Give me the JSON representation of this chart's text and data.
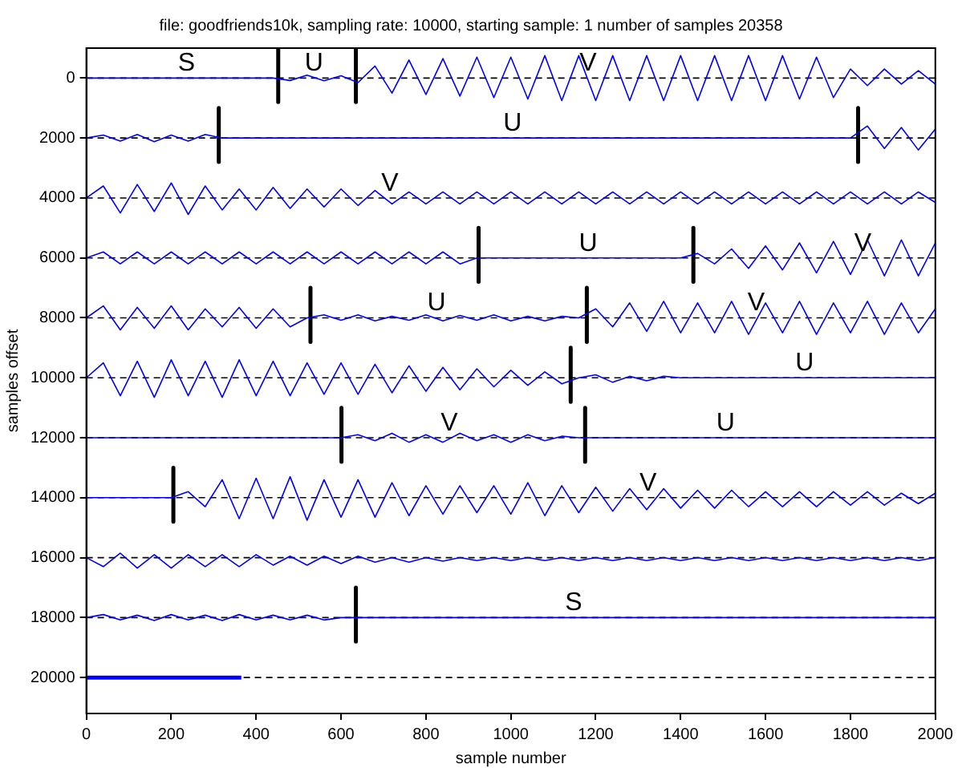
{
  "chart_data": {
    "type": "line",
    "title": "file: goodfriends10k, sampling rate: 10000, starting sample: 1 number of samples 20358",
    "xlabel": "sample number",
    "ylabel": "samples offset",
    "xlim": [
      0,
      2000
    ],
    "xticks": [
      0,
      200,
      400,
      600,
      800,
      1000,
      1200,
      1400,
      1600,
      1800,
      2000
    ],
    "ylim": [
      21200,
      -1000
    ],
    "yticks": [
      0,
      2000,
      4000,
      6000,
      8000,
      10000,
      12000,
      14000,
      16000,
      18000,
      20000
    ],
    "grid": false,
    "legend": false,
    "marker": "none",
    "line_style": "solid",
    "x": [
      0,
      40,
      80,
      120,
      160,
      200,
      240,
      280,
      320,
      360,
      400,
      440,
      480,
      520,
      560,
      600,
      640,
      680,
      720,
      760,
      800,
      840,
      880,
      920,
      960,
      1000,
      1040,
      1080,
      1120,
      1160,
      1200,
      1240,
      1280,
      1320,
      1360,
      1400,
      1440,
      1480,
      1520,
      1560,
      1600,
      1640,
      1680,
      1720,
      1760,
      1800,
      1840,
      1880,
      1920,
      1960,
      2000
    ],
    "series": [
      {
        "color": "#0000ff",
        "values": [
          0,
          0,
          0,
          0,
          0,
          0,
          0,
          0,
          0,
          0,
          0,
          0,
          80,
          -100,
          90,
          -80,
          150,
          -400,
          500,
          -600,
          550,
          -650,
          600,
          -700,
          650,
          -700,
          700,
          -750,
          750,
          -750,
          750,
          -750,
          750,
          -750,
          750,
          -750,
          750,
          -750,
          750,
          -750,
          750,
          -750,
          700,
          -700,
          650,
          -300,
          250,
          -300,
          200,
          -250,
          200
        ]
      },
      {
        "color": "#0000ff",
        "values": [
          2000,
          1900,
          2100,
          1880,
          2120,
          1900,
          2100,
          1880,
          2000,
          2000,
          2000,
          2000,
          2000,
          2000,
          2000,
          2000,
          2000,
          2000,
          2000,
          2000,
          2000,
          2000,
          2000,
          2000,
          2000,
          2000,
          2000,
          2000,
          2000,
          2000,
          2000,
          2000,
          2000,
          2000,
          2000,
          2000,
          2000,
          2000,
          2000,
          2000,
          2000,
          2000,
          2000,
          2000,
          2000,
          2000,
          1600,
          2350,
          1650,
          2400,
          1700
        ]
      },
      {
        "color": "#0000ff",
        "values": [
          4000,
          3600,
          4500,
          3550,
          4450,
          3500,
          4550,
          3600,
          4400,
          3700,
          4400,
          3650,
          4350,
          3700,
          4300,
          3700,
          4250,
          3750,
          4200,
          3800,
          4200,
          3800,
          4200,
          3800,
          4200,
          3800,
          4200,
          3800,
          4200,
          3800,
          4200,
          3800,
          4200,
          3800,
          4200,
          3800,
          4200,
          3800,
          4200,
          3800,
          4200,
          3800,
          4200,
          3800,
          4200,
          3800,
          4200,
          3800,
          4200,
          3800,
          4150
        ]
      },
      {
        "color": "#0000ff",
        "values": [
          6000,
          5800,
          6200,
          5800,
          6200,
          5800,
          6200,
          5800,
          6200,
          5800,
          6200,
          5800,
          6200,
          5800,
          6200,
          5800,
          6200,
          5800,
          6200,
          5800,
          6200,
          5800,
          6200,
          6000,
          6000,
          6000,
          6000,
          6000,
          6000,
          6000,
          6000,
          6000,
          6000,
          6000,
          6000,
          6000,
          5850,
          6200,
          5700,
          6350,
          5600,
          6400,
          5500,
          6500,
          5450,
          6550,
          5400,
          6600,
          5400,
          6600,
          5500
        ]
      },
      {
        "color": "#0000ff",
        "values": [
          8000,
          7600,
          8400,
          7650,
          8350,
          7600,
          8400,
          7700,
          8300,
          7650,
          8350,
          7700,
          8300,
          8000,
          7900,
          8080,
          7900,
          8100,
          7950,
          8080,
          7900,
          8100,
          7920,
          8080,
          7900,
          8100,
          7950,
          8100,
          7950,
          8000,
          7700,
          8300,
          7500,
          8450,
          7450,
          8500,
          7500,
          8500,
          7450,
          8550,
          7500,
          8500,
          7450,
          8550,
          7500,
          8500,
          7450,
          8550,
          7500,
          8500,
          7700
        ]
      },
      {
        "color": "#0000ff",
        "values": [
          10000,
          9500,
          10600,
          9450,
          10650,
          9400,
          10600,
          9450,
          10650,
          9400,
          10600,
          9450,
          10600,
          9500,
          10550,
          9500,
          10550,
          9550,
          10500,
          9600,
          10450,
          9650,
          10400,
          9700,
          10300,
          9750,
          10250,
          9800,
          10200,
          10000,
          9900,
          10150,
          9950,
          10100,
          9950,
          10000,
          10000,
          10000,
          10000,
          10000,
          10000,
          10000,
          10000,
          10000,
          10000,
          10000,
          10000,
          10000,
          10000,
          10000,
          10000
        ]
      },
      {
        "color": "#0000ff",
        "values": [
          12000,
          12000,
          12000,
          12000,
          12000,
          12000,
          12000,
          12000,
          12000,
          12000,
          12000,
          12000,
          12000,
          12000,
          12000,
          12000,
          11900,
          12100,
          11850,
          12150,
          11900,
          12150,
          11850,
          12100,
          11900,
          12150,
          11900,
          12100,
          11950,
          12000,
          12000,
          12000,
          12000,
          12000,
          12000,
          12000,
          12000,
          12000,
          12000,
          12000,
          12000,
          12000,
          12000,
          12000,
          12000,
          12000,
          12000,
          12000,
          12000,
          12000,
          12000
        ]
      },
      {
        "color": "#0000ff",
        "values": [
          14000,
          14000,
          14000,
          14000,
          14000,
          14000,
          13800,
          14300,
          13400,
          14700,
          13350,
          14700,
          13300,
          14750,
          13400,
          14650,
          13400,
          14650,
          13500,
          14600,
          13600,
          14550,
          13600,
          14500,
          13600,
          14550,
          13500,
          14600,
          13600,
          14500,
          13650,
          14450,
          13700,
          14400,
          13700,
          14350,
          13750,
          14350,
          13750,
          14300,
          13800,
          14300,
          13800,
          14300,
          13800,
          14250,
          13800,
          14250,
          13850,
          14200,
          13850
        ]
      },
      {
        "color": "#0000ff",
        "values": [
          16000,
          16300,
          15850,
          16350,
          15900,
          16350,
          15900,
          16300,
          15900,
          16300,
          15900,
          16250,
          15950,
          16250,
          15950,
          16200,
          15950,
          16150,
          16000,
          16150,
          16000,
          16120,
          16000,
          16100,
          16000,
          16100,
          16000,
          16100,
          16000,
          16100,
          16000,
          16100,
          16000,
          16100,
          16000,
          16100,
          16000,
          16100,
          16000,
          16100,
          16000,
          16100,
          16000,
          16100,
          16000,
          16100,
          16000,
          16100,
          16000,
          16100,
          16000
        ]
      },
      {
        "color": "#0000ff",
        "values": [
          18000,
          17900,
          18080,
          17920,
          18100,
          17900,
          18080,
          17920,
          18100,
          17900,
          18080,
          17920,
          18080,
          17920,
          18080,
          18000,
          18000,
          18000,
          18000,
          18000,
          18000,
          18000,
          18000,
          18000,
          18000,
          18000,
          18000,
          18000,
          18000,
          18000,
          18000,
          18000,
          18000,
          18000,
          18000,
          18000,
          18000,
          18000,
          18000,
          18000,
          18000,
          18000,
          18000,
          18000,
          18000,
          18000,
          18000,
          18000,
          18000,
          18000,
          18000
        ]
      },
      {
        "color": "#0000ff",
        "x": [
          0,
          365
        ],
        "values": [
          20000,
          20000
        ]
      },
      {
        "type": "line",
        "color": "#000000",
        "x": [
          452,
          452
        ],
        "values": [
          -1000,
          800
        ]
      },
      {
        "type": "line",
        "color": "#000000",
        "x": [
          635,
          635
        ],
        "values": [
          -1000,
          800
        ]
      },
      {
        "type": "line",
        "color": "#000000",
        "x": [
          312,
          312
        ],
        "values": [
          1000,
          2800
        ]
      },
      {
        "type": "line",
        "color": "#000000",
        "x": [
          1818,
          1818
        ],
        "values": [
          1000,
          2800
        ]
      },
      {
        "type": "line",
        "color": "#000000",
        "x": [
          924,
          924
        ],
        "values": [
          5000,
          6800
        ]
      },
      {
        "type": "line",
        "color": "#000000",
        "x": [
          1430,
          1430
        ],
        "values": [
          5000,
          6800
        ]
      },
      {
        "type": "line",
        "color": "#000000",
        "x": [
          528,
          528
        ],
        "values": [
          7000,
          8800
        ]
      },
      {
        "type": "line",
        "color": "#000000",
        "x": [
          1179,
          1179
        ],
        "values": [
          7000,
          8800
        ]
      },
      {
        "type": "line",
        "color": "#000000",
        "x": [
          1141,
          1141
        ],
        "values": [
          9000,
          10800
        ]
      },
      {
        "type": "line",
        "color": "#000000",
        "x": [
          601,
          601
        ],
        "values": [
          11000,
          12800
        ]
      },
      {
        "type": "line",
        "color": "#000000",
        "x": [
          1175,
          1175
        ],
        "values": [
          11000,
          12800
        ]
      },
      {
        "type": "line",
        "color": "#000000",
        "x": [
          205,
          205
        ],
        "values": [
          13000,
          14800
        ]
      },
      {
        "type": "line",
        "color": "#000000",
        "x": [
          635,
          635
        ],
        "values": [
          17000,
          18800
        ]
      }
    ],
    "ref_lines": [
      {
        "axis": "y",
        "value": 0,
        "color": "#000000",
        "line_style": "dashed"
      },
      {
        "axis": "y",
        "value": 2000,
        "color": "#000000",
        "line_style": "dashed"
      },
      {
        "axis": "y",
        "value": 4000,
        "color": "#000000",
        "line_style": "dashed"
      },
      {
        "axis": "y",
        "value": 6000,
        "color": "#000000",
        "line_style": "dashed"
      },
      {
        "axis": "y",
        "value": 8000,
        "color": "#000000",
        "line_style": "dashed"
      },
      {
        "axis": "y",
        "value": 10000,
        "color": "#000000",
        "line_style": "dashed"
      },
      {
        "axis": "y",
        "value": 12000,
        "color": "#000000",
        "line_style": "dashed"
      },
      {
        "axis": "y",
        "value": 14000,
        "color": "#000000",
        "line_style": "dashed"
      },
      {
        "axis": "y",
        "value": 16000,
        "color": "#000000",
        "line_style": "dashed"
      },
      {
        "axis": "y",
        "value": 18000,
        "color": "#000000",
        "line_style": "dashed"
      },
      {
        "axis": "y",
        "value": 20000,
        "color": "#000000",
        "line_style": "dashed"
      }
    ],
    "annotations": [
      {
        "text": "S",
        "x": 236,
        "y": 0
      },
      {
        "text": "U",
        "x": 536,
        "y": 0
      },
      {
        "text": "V",
        "x": 1182,
        "y": 0
      },
      {
        "text": "U",
        "x": 1004,
        "y": 2000
      },
      {
        "text": "V",
        "x": 715,
        "y": 4000
      },
      {
        "text": "U",
        "x": 1182,
        "y": 6000
      },
      {
        "text": "V",
        "x": 1829,
        "y": 6000
      },
      {
        "text": "U",
        "x": 825,
        "y": 8000
      },
      {
        "text": "V",
        "x": 1578,
        "y": 8000
      },
      {
        "text": "U",
        "x": 1692,
        "y": 10000
      },
      {
        "text": "V",
        "x": 855,
        "y": 12000
      },
      {
        "text": "U",
        "x": 1506,
        "y": 12000
      },
      {
        "text": "V",
        "x": 1323,
        "y": 14000
      },
      {
        "text": "S",
        "x": 1148,
        "y": 18000
      }
    ]
  }
}
